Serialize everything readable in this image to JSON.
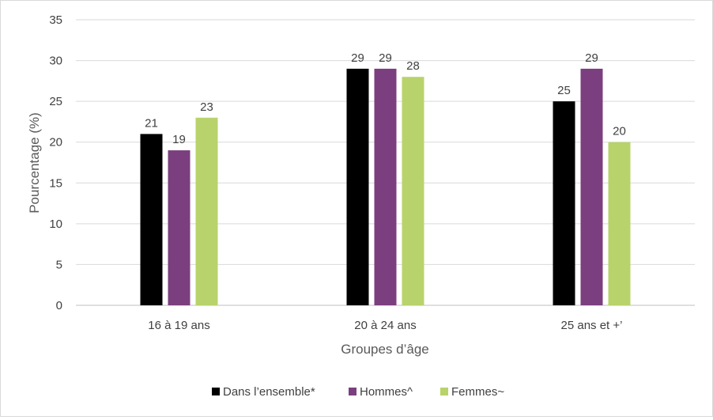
{
  "chart_data": {
    "type": "bar",
    "categories": [
      "16 à 19 ans",
      "20 à 24 ans",
      "25 ans et +’"
    ],
    "series": [
      {
        "name": "Dans l’ensemble*",
        "values": [
          21,
          29,
          25
        ],
        "color": "#000000"
      },
      {
        "name": "Hommes^",
        "values": [
          19,
          29,
          29
        ],
        "color": "#7b3f7f"
      },
      {
        "name": "Femmes~",
        "values": [
          23,
          28,
          20
        ],
        "color": "#b8d36b"
      }
    ],
    "xlabel": "Groupes d’âge",
    "ylabel": "Pourcentage (%)",
    "ylim": [
      0,
      35
    ],
    "yticks": [
      "0",
      "5",
      "10",
      "15",
      "20",
      "25",
      "30",
      "35"
    ],
    "grid": true,
    "legend": "bottom",
    "data_labels": true
  }
}
